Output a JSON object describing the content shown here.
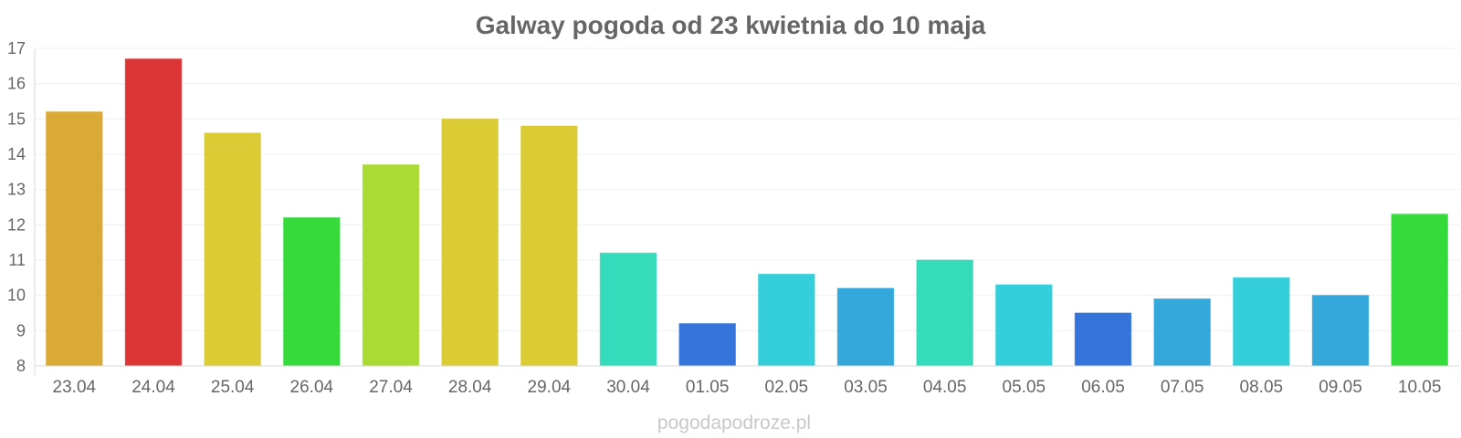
{
  "chart_data": {
    "type": "bar",
    "title": "Galway pogoda od 23 kwietnia do 10 maja",
    "xlabel": "",
    "ylabel": "",
    "ylim": [
      8,
      17
    ],
    "yticks": [
      8,
      9,
      10,
      11,
      12,
      13,
      14,
      15,
      16,
      17
    ],
    "grid": true,
    "legend": "none",
    "categories": [
      "23.04",
      "24.04",
      "25.04",
      "26.04",
      "27.04",
      "28.04",
      "29.04",
      "30.04",
      "01.05",
      "02.05",
      "03.05",
      "04.05",
      "05.05",
      "06.05",
      "07.05",
      "08.05",
      "09.05",
      "10.05"
    ],
    "values": [
      15.2,
      16.7,
      14.6,
      12.2,
      13.7,
      15.0,
      14.8,
      11.2,
      9.2,
      10.6,
      10.2,
      11.0,
      10.3,
      9.5,
      9.9,
      10.5,
      10.0,
      12.3
    ],
    "colors": [
      "#dba935",
      "#db3535",
      "#dbcc35",
      "#35db3b",
      "#aadb35",
      "#dbcc35",
      "#dbcc35",
      "#35dbbb",
      "#3575db",
      "#35cedb",
      "#35a8db",
      "#35dbbb",
      "#35cedb",
      "#3575db",
      "#35a8db",
      "#35cedb",
      "#35a8db",
      "#35db3b"
    ]
  },
  "watermark": "pogodapodroze.pl"
}
